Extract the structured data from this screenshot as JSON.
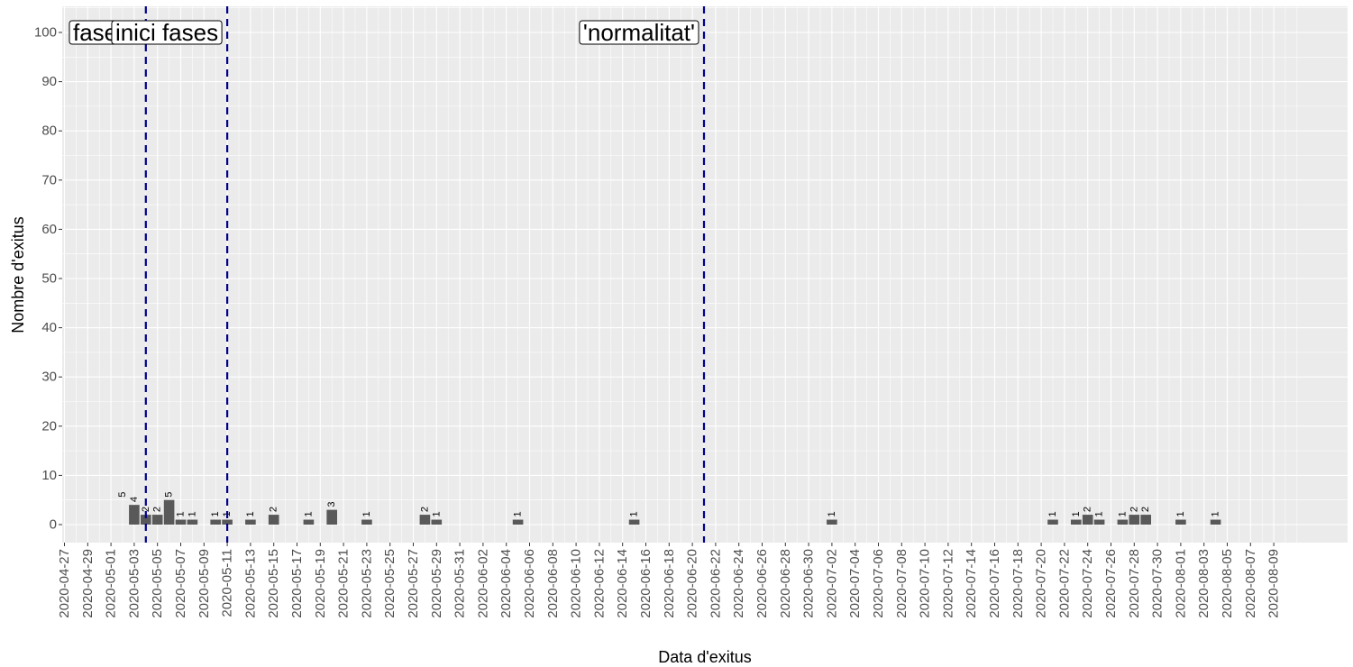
{
  "chart_data": {
    "type": "bar",
    "xlabel": "Data d'exitus",
    "ylabel": "Nombre d'exitus",
    "ylim": [
      0,
      100
    ],
    "yticks": [
      0,
      10,
      20,
      30,
      40,
      50,
      60,
      70,
      80,
      90,
      100
    ],
    "xlim": [
      "2020-04-27",
      "2020-08-10"
    ],
    "xtick_labels": [
      "2020-04-27",
      "2020-04-29",
      "2020-05-01",
      "2020-05-03",
      "2020-05-05",
      "2020-05-07",
      "2020-05-09",
      "2020-05-11",
      "2020-05-13",
      "2020-05-15",
      "2020-05-17",
      "2020-05-19",
      "2020-05-21",
      "2020-05-23",
      "2020-05-25",
      "2020-05-27",
      "2020-05-29",
      "2020-05-31",
      "2020-06-02",
      "2020-06-04",
      "2020-06-06",
      "2020-06-08",
      "2020-06-10",
      "2020-06-12",
      "2020-06-14",
      "2020-06-16",
      "2020-06-18",
      "2020-06-20",
      "2020-06-22",
      "2020-06-24",
      "2020-06-26",
      "2020-06-28",
      "2020-06-30",
      "2020-07-02",
      "2020-07-04",
      "2020-07-06",
      "2020-07-08",
      "2020-07-10",
      "2020-07-12",
      "2020-07-14",
      "2020-07-16",
      "2020-07-18",
      "2020-07-20",
      "2020-07-22",
      "2020-07-24",
      "2020-07-26",
      "2020-07-28",
      "2020-07-30",
      "2020-08-01",
      "2020-08-03",
      "2020-08-05",
      "2020-08-07",
      "2020-08-09"
    ],
    "bars": [
      {
        "date": "2020-05-03",
        "value": 4,
        "label": "4"
      },
      {
        "date": "2020-05-04",
        "value": 2,
        "label": "2"
      },
      {
        "date": "2020-05-05",
        "value": 2,
        "label": "2"
      },
      {
        "date": "2020-05-06",
        "value": 5,
        "label": "5"
      },
      {
        "date": "2020-05-07",
        "value": 1,
        "label": "1"
      },
      {
        "date": "2020-05-08",
        "value": 1,
        "label": "1"
      },
      {
        "date": "2020-05-10",
        "value": 1,
        "label": "1"
      },
      {
        "date": "2020-05-11",
        "value": 1,
        "label": "1"
      },
      {
        "date": "2020-05-13",
        "value": 1,
        "label": "1"
      },
      {
        "date": "2020-05-15",
        "value": 2,
        "label": "2"
      },
      {
        "date": "2020-05-18",
        "value": 1,
        "label": "1"
      },
      {
        "date": "2020-05-20",
        "value": 3,
        "label": "3"
      },
      {
        "date": "2020-05-23",
        "value": 1,
        "label": "1"
      },
      {
        "date": "2020-05-28",
        "value": 2,
        "label": "2"
      },
      {
        "date": "2020-05-29",
        "value": 1,
        "label": "1"
      },
      {
        "date": "2020-06-05",
        "value": 1,
        "label": "1"
      },
      {
        "date": "2020-06-15",
        "value": 1,
        "label": "1"
      },
      {
        "date": "2020-07-02",
        "value": 1,
        "label": "1"
      },
      {
        "date": "2020-07-21",
        "value": 1,
        "label": "1"
      },
      {
        "date": "2020-07-23",
        "value": 1,
        "label": "1"
      },
      {
        "date": "2020-07-24",
        "value": 2,
        "label": "2"
      },
      {
        "date": "2020-07-25",
        "value": 1,
        "label": "1"
      },
      {
        "date": "2020-07-27",
        "value": 1,
        "label": "1"
      },
      {
        "date": "2020-07-28",
        "value": 2,
        "label": "2"
      },
      {
        "date": "2020-07-29",
        "value": 2,
        "label": "2"
      },
      {
        "date": "2020-08-01",
        "value": 1,
        "label": "1"
      },
      {
        "date": "2020-08-04",
        "value": 1,
        "label": "1"
      }
    ],
    "extra_labels": [
      {
        "date": "2020-05-02",
        "value": 5,
        "label": "5"
      }
    ],
    "vlines": [
      {
        "date": "2020-05-04",
        "color": "#00008b",
        "style": "dashed"
      },
      {
        "date": "2020-05-11",
        "color": "#00008b",
        "style": "dashed"
      },
      {
        "date": "2020-06-21",
        "color": "#00008b",
        "style": "dashed"
      }
    ],
    "annotations": [
      {
        "text": "fase 0",
        "date": "2020-05-04",
        "anchor": "right",
        "y": 100
      },
      {
        "text": "inici fases",
        "date": "2020-05-11",
        "anchor": "right",
        "y": 100
      },
      {
        "text": "'normalitat'",
        "date": "2020-06-21",
        "anchor": "right",
        "y": 100
      }
    ],
    "colors": {
      "panel": "#ebebeb",
      "grid_major": "#ffffff",
      "bar": "#595959",
      "vline": "#00008b"
    },
    "grid": true,
    "legend": "none"
  }
}
